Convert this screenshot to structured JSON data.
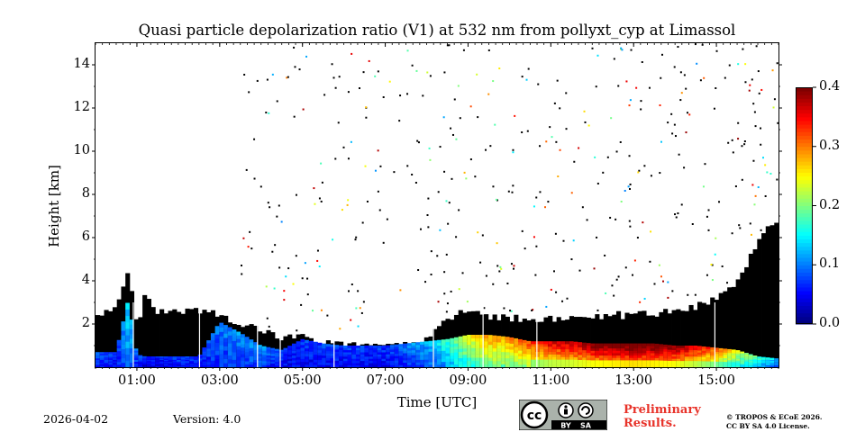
{
  "chart_data": {
    "type": "heatmap",
    "title": "Quasi particle depolarization ratio (V1) at 532 nm from pollyxt_cyp at Limassol",
    "xlabel": "Time [UTC]",
    "ylabel": "Height [km]",
    "xlim_hours": [
      0.0,
      16.5
    ],
    "ylim_km": [
      0,
      15
    ],
    "x_ticks": [
      {
        "hour": 1,
        "label": "01:00"
      },
      {
        "hour": 3,
        "label": "03:00"
      },
      {
        "hour": 5,
        "label": "05:00"
      },
      {
        "hour": 7,
        "label": "07:00"
      },
      {
        "hour": 9,
        "label": "09:00"
      },
      {
        "hour": 11,
        "label": "11:00"
      },
      {
        "hour": 13,
        "label": "13:00"
      },
      {
        "hour": 15,
        "label": "15:00"
      }
    ],
    "y_ticks": [
      {
        "value": 2,
        "label": "2"
      },
      {
        "value": 4,
        "label": "4"
      },
      {
        "value": 6,
        "label": "6"
      },
      {
        "value": 8,
        "label": "8"
      },
      {
        "value": 10,
        "label": "10"
      },
      {
        "value": 12,
        "label": "12"
      },
      {
        "value": 14,
        "label": "14"
      }
    ],
    "colorbar": {
      "min": 0.0,
      "max": 0.4,
      "colormap": "jet",
      "ticks": [
        {
          "value": 0.0,
          "label": "0.0"
        },
        {
          "value": 0.1,
          "label": "0.1"
        },
        {
          "value": 0.2,
          "label": "0.2"
        },
        {
          "value": 0.3,
          "label": "0.3"
        },
        {
          "value": 0.4,
          "label": "0.4"
        }
      ]
    },
    "profile": [
      {
        "t": 0.0,
        "top": 2.3,
        "depol": 0.07,
        "h": 0.7
      },
      {
        "t": 0.5,
        "top": 2.8,
        "depol": 0.06,
        "h": 0.7
      },
      {
        "t": 0.8,
        "top": 4.5,
        "depol": 0.12,
        "h": 3.2
      },
      {
        "t": 1.0,
        "top": 1.8,
        "depol": 0.07,
        "h": 0.6
      },
      {
        "t": 1.2,
        "top": 3.3,
        "depol": 0.05,
        "h": 0.5
      },
      {
        "t": 1.5,
        "top": 2.6,
        "depol": 0.05,
        "h": 0.5
      },
      {
        "t": 2.0,
        "top": 2.6,
        "depol": 0.06,
        "h": 0.5
      },
      {
        "t": 2.5,
        "top": 2.6,
        "depol": 0.06,
        "h": 0.5
      },
      {
        "t": 3.0,
        "top": 2.4,
        "depol": 0.08,
        "h": 2.1
      },
      {
        "t": 3.5,
        "top": 2.1,
        "depol": 0.09,
        "h": 1.6
      },
      {
        "t": 4.0,
        "top": 1.6,
        "depol": 0.09,
        "h": 1.0
      },
      {
        "t": 4.5,
        "top": 1.4,
        "depol": 0.06,
        "h": 0.8
      },
      {
        "t": 5.0,
        "top": 1.4,
        "depol": 0.06,
        "h": 1.3
      },
      {
        "t": 5.5,
        "top": 1.1,
        "depol": 0.06,
        "h": 1.1
      },
      {
        "t": 6.0,
        "top": 1.0,
        "depol": 0.06,
        "h": 1.0
      },
      {
        "t": 7.0,
        "top": 1.0,
        "depol": 0.06,
        "h": 1.0
      },
      {
        "t": 8.0,
        "top": 1.2,
        "depol": 0.1,
        "h": 1.2
      },
      {
        "t": 8.5,
        "top": 2.2,
        "depol": 0.14,
        "h": 1.3
      },
      {
        "t": 9.0,
        "top": 2.6,
        "depol": 0.2,
        "h": 1.5
      },
      {
        "t": 9.5,
        "top": 2.3,
        "depol": 0.24,
        "h": 1.5
      },
      {
        "t": 10.0,
        "top": 2.3,
        "depol": 0.24,
        "h": 1.4
      },
      {
        "t": 10.5,
        "top": 2.2,
        "depol": 0.27,
        "h": 1.2
      },
      {
        "t": 11.0,
        "top": 2.2,
        "depol": 0.3,
        "h": 1.2
      },
      {
        "t": 11.5,
        "top": 2.2,
        "depol": 0.31,
        "h": 1.2
      },
      {
        "t": 12.0,
        "top": 2.3,
        "depol": 0.33,
        "h": 1.1
      },
      {
        "t": 12.5,
        "top": 2.4,
        "depol": 0.34,
        "h": 1.1
      },
      {
        "t": 13.0,
        "top": 2.4,
        "depol": 0.35,
        "h": 1.1
      },
      {
        "t": 13.5,
        "top": 2.5,
        "depol": 0.34,
        "h": 1.1
      },
      {
        "t": 14.0,
        "top": 2.6,
        "depol": 0.33,
        "h": 1.0
      },
      {
        "t": 14.5,
        "top": 2.8,
        "depol": 0.3,
        "h": 1.0
      },
      {
        "t": 15.0,
        "top": 3.2,
        "depol": 0.26,
        "h": 0.9
      },
      {
        "t": 15.5,
        "top": 4.0,
        "depol": 0.2,
        "h": 0.8
      },
      {
        "t": 16.0,
        "top": 5.8,
        "depol": 0.15,
        "h": 0.5
      },
      {
        "t": 16.5,
        "top": 7.0,
        "depol": 0.1,
        "h": 0.4
      }
    ]
  },
  "footer": {
    "date": "2026-04-02",
    "version": "Version: 4.0",
    "preliminary_line1": "Preliminary",
    "preliminary_line2": "Results.",
    "copyright_line1": "© TROPOS & ECoE 2026.",
    "copyright_line2": "CC BY SA 4.0 License.",
    "cc_label_by": "BY",
    "cc_label_sa": "SA",
    "cc_label_cc": "cc"
  }
}
